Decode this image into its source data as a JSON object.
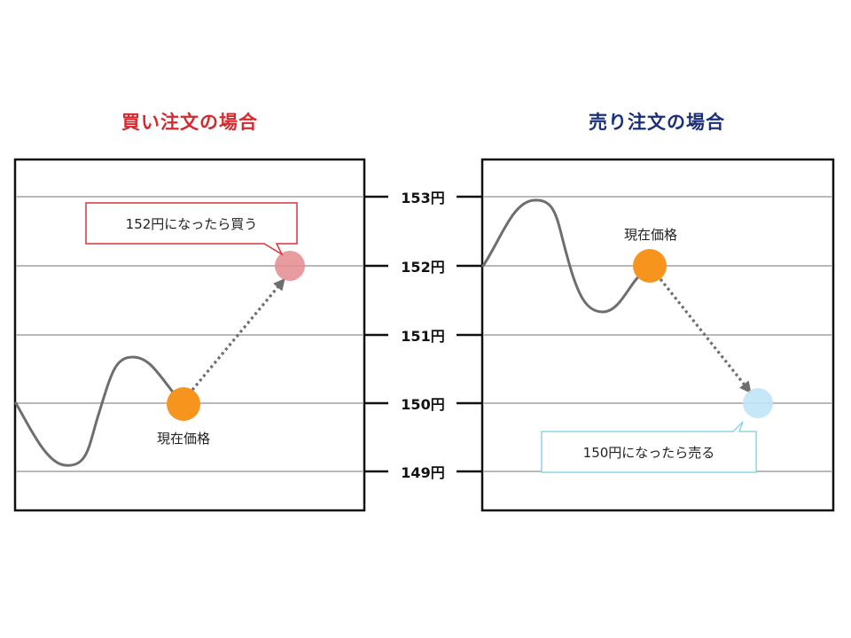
{
  "buy_panel": {
    "title": "買い注文の場合",
    "title_color": "#d42a2f",
    "current_price_label": "現在価格",
    "callout": "152円になったら買う",
    "callout_border_color": "#d9353a",
    "target_marker_color": "#e58b8e"
  },
  "sell_panel": {
    "title": "売り注文の場合",
    "title_color": "#1b2f7a",
    "current_price_label": "現在価格",
    "callout": "150円になったら売る",
    "callout_border_color": "#8fd3ea",
    "target_marker_color": "#bfe4f7"
  },
  "price_axis": {
    "ticks": [
      "153円",
      "152円",
      "151円",
      "150円",
      "149円"
    ]
  },
  "colors": {
    "current_price_marker": "#f7941d",
    "price_line": "#6e6e6e",
    "grid_line": "#b9b9b9",
    "frame": "#111111"
  }
}
